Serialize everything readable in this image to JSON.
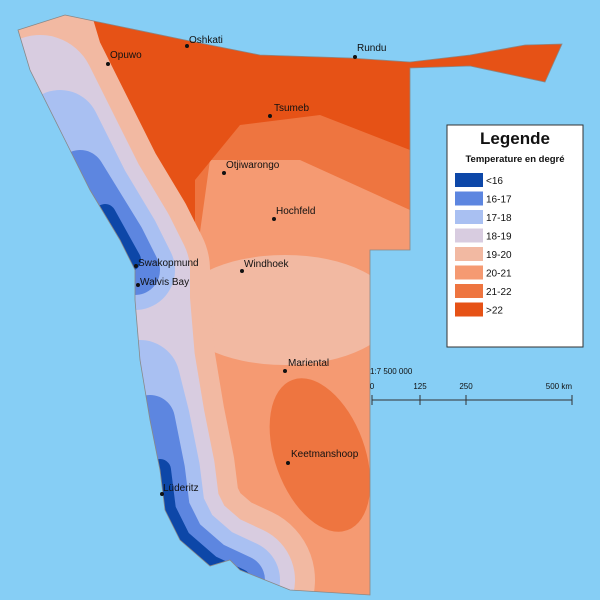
{
  "legend": {
    "title": "Legende",
    "subtitle": "Temperature en degré",
    "items": [
      {
        "label": "<16",
        "color": "#0d47a8"
      },
      {
        "label": "16-17",
        "color": "#5d86e0"
      },
      {
        "label": "17-18",
        "color": "#a9c0f2"
      },
      {
        "label": "18-19",
        "color": "#d8cce0"
      },
      {
        "label": "19-20",
        "color": "#f2b9a2"
      },
      {
        "label": "20-21",
        "color": "#f59a72"
      },
      {
        "label": "21-22",
        "color": "#ee7540"
      },
      {
        "label": ">22",
        "color": "#e65216"
      }
    ]
  },
  "cities": [
    "Oshkati",
    "Opuwo",
    "Rundu",
    "Tsumeb",
    "Otjiwarongo",
    "Hochfeld",
    "Windhoek",
    "Swakopmund",
    "Walvis Bay",
    "Mariental",
    "Keetmanshoop",
    "Lüderitz"
  ],
  "scale": {
    "ratio": "1:7 500 000",
    "ticks": [
      "0",
      "125",
      "250",
      "500 km"
    ]
  }
}
